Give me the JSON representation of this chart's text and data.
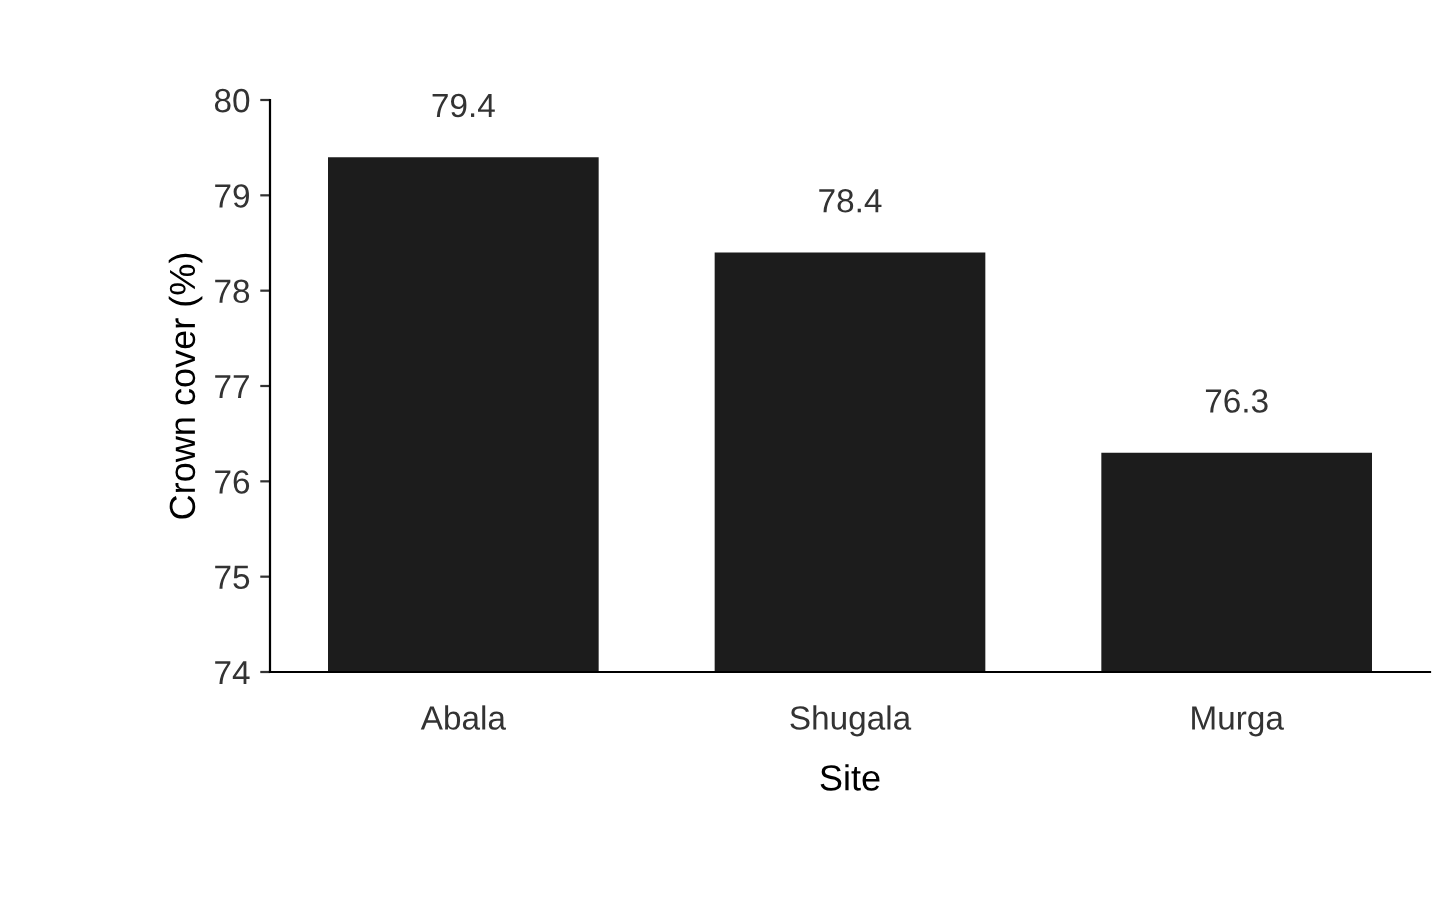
{
  "chart_data": {
    "type": "bar",
    "xlabel": "Site",
    "ylabel": "Crown cover (%)",
    "categories": [
      "Abala",
      "Shugala",
      "Murga"
    ],
    "values": [
      79.4,
      78.4,
      76.3
    ],
    "color": "#1c1c1c",
    "ylim": [
      74,
      80
    ],
    "yticks": [
      74,
      75,
      76,
      77,
      78,
      79,
      80
    ],
    "grid": false,
    "data_labels": true
  }
}
